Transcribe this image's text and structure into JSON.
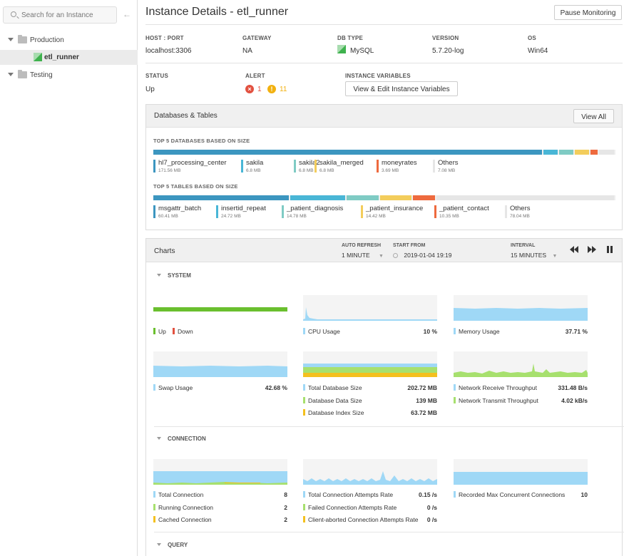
{
  "sidebar": {
    "search_placeholder": "Search for an Instance",
    "tree": [
      {
        "label": "Production"
      },
      {
        "label": "etl_runner"
      },
      {
        "label": "Testing"
      }
    ]
  },
  "header": {
    "title": "Instance Details - etl_runner",
    "pause_button": "Pause Monitoring"
  },
  "info": {
    "host_label": "HOST : PORT",
    "host_value": "localhost:3306",
    "gateway_label": "GATEWAY",
    "gateway_value": "NA",
    "dbtype_label": "DB TYPE",
    "dbtype_value": "MySQL",
    "version_label": "VERSION",
    "version_value": "5.7.20-log",
    "os_label": "OS",
    "os_value": "Win64",
    "status_label": "STATUS",
    "status_value": "Up",
    "alert_label": "ALERT",
    "alert_critical": "1",
    "alert_warning": "11",
    "vars_label": "INSTANCE VARIABLES",
    "vars_button": "View & Edit Instance Variables"
  },
  "databases": {
    "title": "Databases & Tables",
    "view_all": "View All",
    "top_db_label": "TOP 5 DATABASES BASED ON SIZE",
    "db_fractions": [
      0.8445,
      0.034,
      0.034,
      0.034,
      0.018,
      0.0355
    ],
    "top_db": [
      {
        "name": "hl7_processing_center",
        "size": "171.56 MB",
        "color": "#3c96c0"
      },
      {
        "name": "sakila",
        "size": "6.8 MB",
        "color": "#49b6d6"
      },
      {
        "name": "sakila2",
        "size": "6.8 MB",
        "color": "#7fcbc4"
      },
      {
        "name": "sakila_merged",
        "size": "6.8 MB",
        "color": "#f3cd5c"
      },
      {
        "name": "moneyrates",
        "size": "3.69 MB",
        "color": "#ee6a3e"
      },
      {
        "name": "Others",
        "size": "7.08 MB",
        "color": "#e6e6e6"
      }
    ],
    "top_table_label": "TOP 5 TABLES BASED ON SIZE",
    "table_fractions": [
      0.2965,
      0.1215,
      0.0725,
      0.0715,
      0.0505,
      0.3875
    ],
    "top_tables": [
      {
        "name": "msgattr_batch",
        "size": "60.41 MB",
        "color": "#3c96c0"
      },
      {
        "name": "insertid_repeat",
        "size": "24.72 MB",
        "color": "#49b6d6"
      },
      {
        "name": "_patient_diagnosis",
        "size": "14.78 MB",
        "color": "#7fcbc4"
      },
      {
        "name": "_patient_insurance",
        "size": "14.42 MB",
        "color": "#f3cd5c"
      },
      {
        "name": "_patient_contact",
        "size": "10.35 MB",
        "color": "#ee6a3e"
      },
      {
        "name": "Others",
        "size": "78.04 MB",
        "color": "#e6e6e6"
      }
    ]
  },
  "charts": {
    "title": "Charts",
    "auto_refresh_label": "AUTO REFRESH",
    "auto_refresh_value": "1 MINUTE",
    "start_from_label": "START FROM",
    "start_from_value": "2019-01-04 19:19",
    "interval_label": "INTERVAL",
    "interval_value": "15 MINUTES",
    "system": {
      "title": "SYSTEM",
      "status_legend": [
        {
          "name": "Up",
          "color": "#6abf2e"
        },
        {
          "name": "Down",
          "color": "#e25140"
        }
      ],
      "cpu": {
        "name": "CPU Usage",
        "value": "10 %",
        "color": "#9fd8f6"
      },
      "memory": {
        "name": "Memory Usage",
        "value": "37.71 %",
        "color": "#9fd8f6"
      },
      "swap": {
        "name": "Swap Usage",
        "value": "42.68 %",
        "color": "#9fd8f6"
      },
      "db_size": [
        {
          "name": "Total Database Size",
          "value": "202.72 MB",
          "color": "#9fd8f6"
        },
        {
          "name": "Database Data Size",
          "value": "139 MB",
          "color": "#a7e06e"
        },
        {
          "name": "Database Index Size",
          "value": "63.72 MB",
          "color": "#f4c01e"
        }
      ],
      "network": [
        {
          "name": "Network Receive Throughput",
          "value": "331.48 B/s",
          "color": "#9fd8f6"
        },
        {
          "name": "Network Transmit Throughput",
          "value": "4.02 kB/s",
          "color": "#a7e06e"
        }
      ]
    },
    "connection": {
      "title": "CONNECTION",
      "conn": [
        {
          "name": "Total Connection",
          "value": "8",
          "color": "#9fd8f6"
        },
        {
          "name": "Running Connection",
          "value": "2",
          "color": "#a7e06e"
        },
        {
          "name": "Cached Connection",
          "value": "2",
          "color": "#f4c01e"
        }
      ],
      "attempts": [
        {
          "name": "Total Connection Attempts Rate",
          "value": "0.15 /s",
          "color": "#9fd8f6"
        },
        {
          "name": "Failed Connection Attempts Rate",
          "value": "0 /s",
          "color": "#a7e06e"
        },
        {
          "name": "Client-aborted Connection Attempts Rate",
          "value": "0 /s",
          "color": "#f4c01e"
        }
      ],
      "max_conn": {
        "name": "Recorded Max Concurrent Connections",
        "value": "10",
        "color": "#9fd8f6"
      }
    },
    "query": {
      "title": "QUERY"
    }
  }
}
